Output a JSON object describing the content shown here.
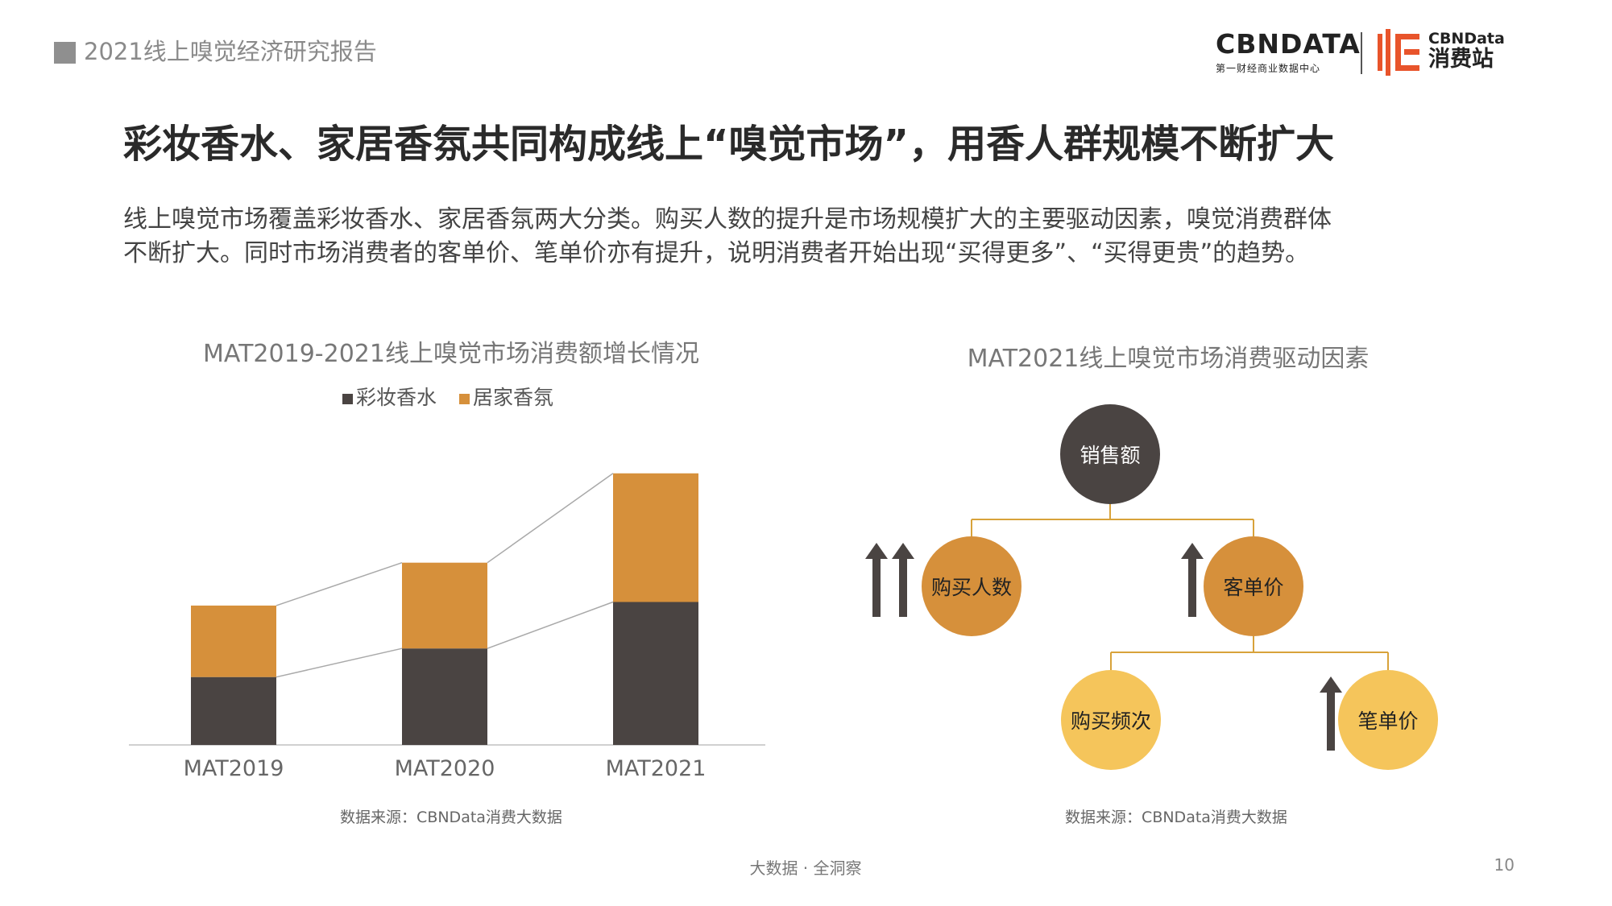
{
  "header": {
    "report_title": "2021线上嗅觉经济研究报告",
    "logo_cbn_main": "CBNDATA",
    "logo_cbn_sub": "第一财经商业数据中心",
    "logo_xf_top": "CBNData",
    "logo_xf_bottom": "消费站"
  },
  "headline": "彩妆香水、家居香氛共同构成线上“嗅觉市场”，用香人群规模不断扩大",
  "subtitle_lines": [
    "线上嗅觉市场覆盖彩妆香水、家居香氛两大分类。购买人数的提升是市场规模扩大的主要驱动因素，嗅觉消费群体",
    "不断扩大。同时市场消费者的客单价、笔单价亦有提升，说明消费者开始出现“买得更多”、“买得更贵”的趋势。"
  ],
  "chart_data": {
    "type": "bar",
    "stacked": true,
    "title": "MAT2019-2021线上嗅觉市场消费额增长情况",
    "categories": [
      "MAT2019",
      "MAT2020",
      "MAT2021"
    ],
    "series": [
      {
        "name": "彩妆香水",
        "values": [
          19,
          27,
          40
        ],
        "color": "#4a4442"
      },
      {
        "name": "居家香氛",
        "values": [
          20,
          24,
          36
        ],
        "color": "#d6903b"
      }
    ],
    "legend_position": "top",
    "y_axis_visible": false,
    "grid": false,
    "connector_lines": true,
    "ylim": [
      0,
      80
    ]
  },
  "left_source": "数据来源：CBNData消费大数据",
  "diagram": {
    "title": "MAT2021线上嗅觉市场消费驱动因素",
    "nodes": {
      "sales": "销售额",
      "buyers": "购买人数",
      "customer_price": "客单价",
      "frequency": "购买频次",
      "item_price": "笔单价"
    },
    "trend": {
      "buyers": "up-strong",
      "customer_price": "up",
      "item_price": "up"
    },
    "colors": {
      "sales": "#4a4442",
      "level2": "#d6903b",
      "level3": "#f5c55b",
      "connector": "#d8a23a",
      "arrow": "#4a4442"
    }
  },
  "right_source": "数据来源：CBNData消费大数据",
  "footer": {
    "slogan": "大数据 · 全洞察",
    "page_number": "10"
  }
}
